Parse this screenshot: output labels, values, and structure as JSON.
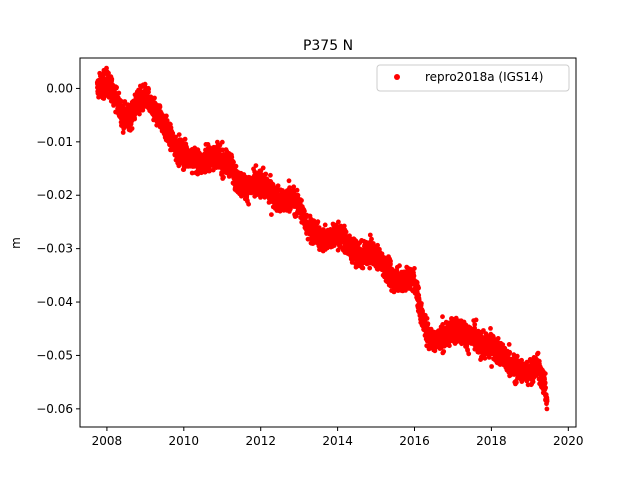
{
  "chart_data": {
    "type": "scatter",
    "title": "P375 N",
    "xlabel": "",
    "ylabel": "m",
    "xlim": [
      2007.3,
      2020.2
    ],
    "ylim": [
      -0.0634,
      0.0057
    ],
    "xticks": [
      2008,
      2010,
      2012,
      2014,
      2016,
      2018,
      2020
    ],
    "xtick_labels": [
      "2008",
      "2010",
      "2012",
      "2014",
      "2016",
      "2018",
      "2020"
    ],
    "yticks": [
      0.0,
      -0.01,
      -0.02,
      -0.03,
      -0.04,
      -0.05,
      -0.06
    ],
    "ytick_labels": [
      "0.00",
      "−0.01",
      "−0.02",
      "−0.03",
      "−0.04",
      "−0.05",
      "−0.06"
    ],
    "grid": false,
    "legend_position": "top-right",
    "series": [
      {
        "name": "repro2018a (IGS14)",
        "color": "#ff0000",
        "marker": "circle",
        "trend": {
          "x": [
            2007.75,
            2008.0,
            2008.2,
            2008.4,
            2008.6,
            2008.8,
            2009.0,
            2009.2,
            2009.4,
            2009.6,
            2009.8,
            2010.0,
            2010.2,
            2010.4,
            2010.6,
            2010.8,
            2011.0,
            2011.2,
            2011.4,
            2011.6,
            2011.8,
            2012.0,
            2012.2,
            2012.4,
            2012.6,
            2012.8,
            2013.0,
            2013.2,
            2013.4,
            2013.6,
            2013.8,
            2014.0,
            2014.2,
            2014.4,
            2014.6,
            2014.8,
            2015.0,
            2015.2,
            2015.4,
            2015.6,
            2015.8,
            2016.0,
            2016.2,
            2016.4,
            2016.6,
            2016.8,
            2017.0,
            2017.2,
            2017.4,
            2017.6,
            2017.8,
            2018.0,
            2018.2,
            2018.4,
            2018.6,
            2018.8,
            2019.0,
            2019.2,
            2019.4,
            2019.45
          ],
          "y": [
            0.0,
            0.0012,
            -0.001,
            -0.005,
            -0.0055,
            -0.0025,
            -0.0015,
            -0.004,
            -0.0055,
            -0.0085,
            -0.0115,
            -0.0125,
            -0.013,
            -0.014,
            -0.0135,
            -0.0125,
            -0.014,
            -0.014,
            -0.0175,
            -0.0185,
            -0.0185,
            -0.0175,
            -0.019,
            -0.0205,
            -0.0215,
            -0.0205,
            -0.022,
            -0.0255,
            -0.027,
            -0.0285,
            -0.028,
            -0.0275,
            -0.0285,
            -0.0305,
            -0.0315,
            -0.0305,
            -0.031,
            -0.033,
            -0.0355,
            -0.036,
            -0.0355,
            -0.036,
            -0.043,
            -0.047,
            -0.047,
            -0.0465,
            -0.045,
            -0.0455,
            -0.0465,
            -0.047,
            -0.0485,
            -0.048,
            -0.0495,
            -0.051,
            -0.0525,
            -0.053,
            -0.053,
            -0.052,
            -0.056,
            -0.0595
          ]
        }
      }
    ]
  }
}
